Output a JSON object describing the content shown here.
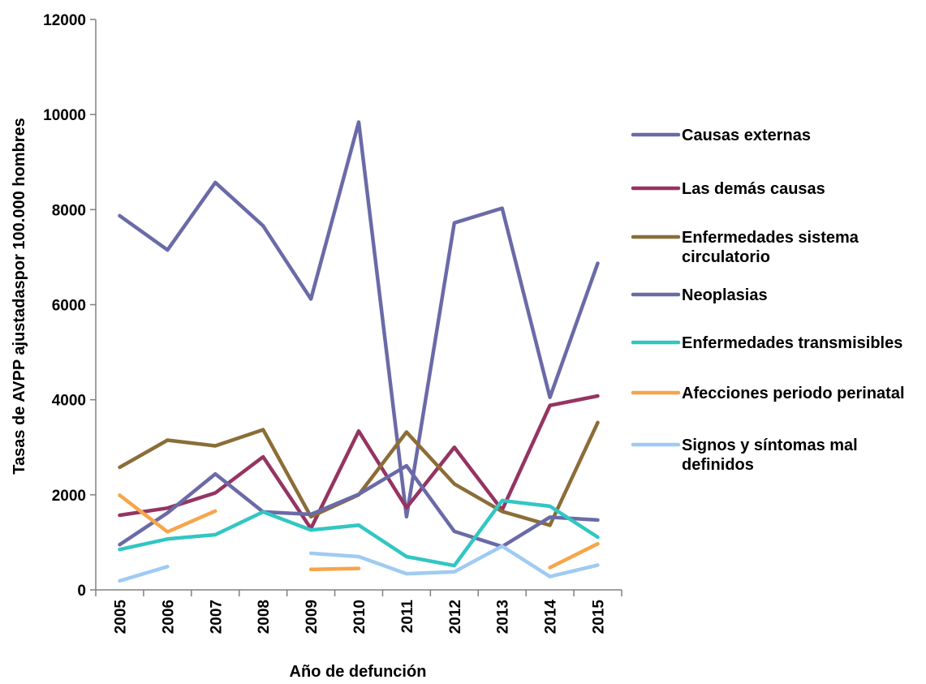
{
  "chart_data": {
    "type": "line",
    "title": "",
    "xlabel": "Año de defunción",
    "ylabel": "Tasas de AVPP ajustadaspor 100.000 hombres",
    "ylim": [
      0,
      12000
    ],
    "yticks": [
      "0",
      "2000",
      "4000",
      "6000",
      "8000",
      "10000",
      "12000"
    ],
    "ytick_values": [
      0,
      2000,
      4000,
      6000,
      8000,
      10000,
      12000
    ],
    "categories": [
      "2005",
      "2006",
      "2007",
      "2008",
      "2009",
      "2010",
      "2011",
      "2012",
      "2013",
      "2014",
      "2015"
    ],
    "grid": false,
    "legend_position": "right",
    "series": [
      {
        "name": "Causas externas",
        "color": "#6B6AA8",
        "values": [
          7870,
          7150,
          8570,
          7660,
          6120,
          9840,
          1540,
          7720,
          8030,
          4050,
          6870
        ]
      },
      {
        "name": "Las demás causas",
        "color": "#953462",
        "values": [
          1570,
          1720,
          2040,
          2800,
          1290,
          3340,
          1730,
          3000,
          1680,
          3880,
          4080
        ]
      },
      {
        "name": "Enfermedades sistema circulatorio",
        "name_lines": [
          "Enfermedades sistema",
          "circulatorio"
        ],
        "color": "#8B6D38",
        "values": [
          2580,
          3150,
          3030,
          3370,
          1540,
          2000,
          3320,
          2230,
          1650,
          1360,
          3520
        ]
      },
      {
        "name": "Neoplasias",
        "color": "#6B6AA8",
        "values": [
          950,
          1620,
          2440,
          1640,
          1590,
          2010,
          2610,
          1230,
          910,
          1530,
          1470
        ]
      },
      {
        "name": "Enfermedades transmisibles",
        "color": "#32C6C3",
        "values": [
          850,
          1070,
          1160,
          1640,
          1260,
          1360,
          700,
          510,
          1880,
          1760,
          1110
        ]
      },
      {
        "name": "Afecciones periodo perinatal",
        "color": "#F7A54A",
        "values": [
          1990,
          1220,
          1660,
          null,
          430,
          450,
          null,
          null,
          null,
          470,
          970
        ]
      },
      {
        "name": "Signos y síntomas mal definidos",
        "name_lines": [
          "Signos y síntomas mal",
          "definidos"
        ],
        "color": "#9FCBF2",
        "values": [
          190,
          490,
          null,
          null,
          770,
          700,
          340,
          380,
          920,
          280,
          520
        ]
      }
    ]
  }
}
